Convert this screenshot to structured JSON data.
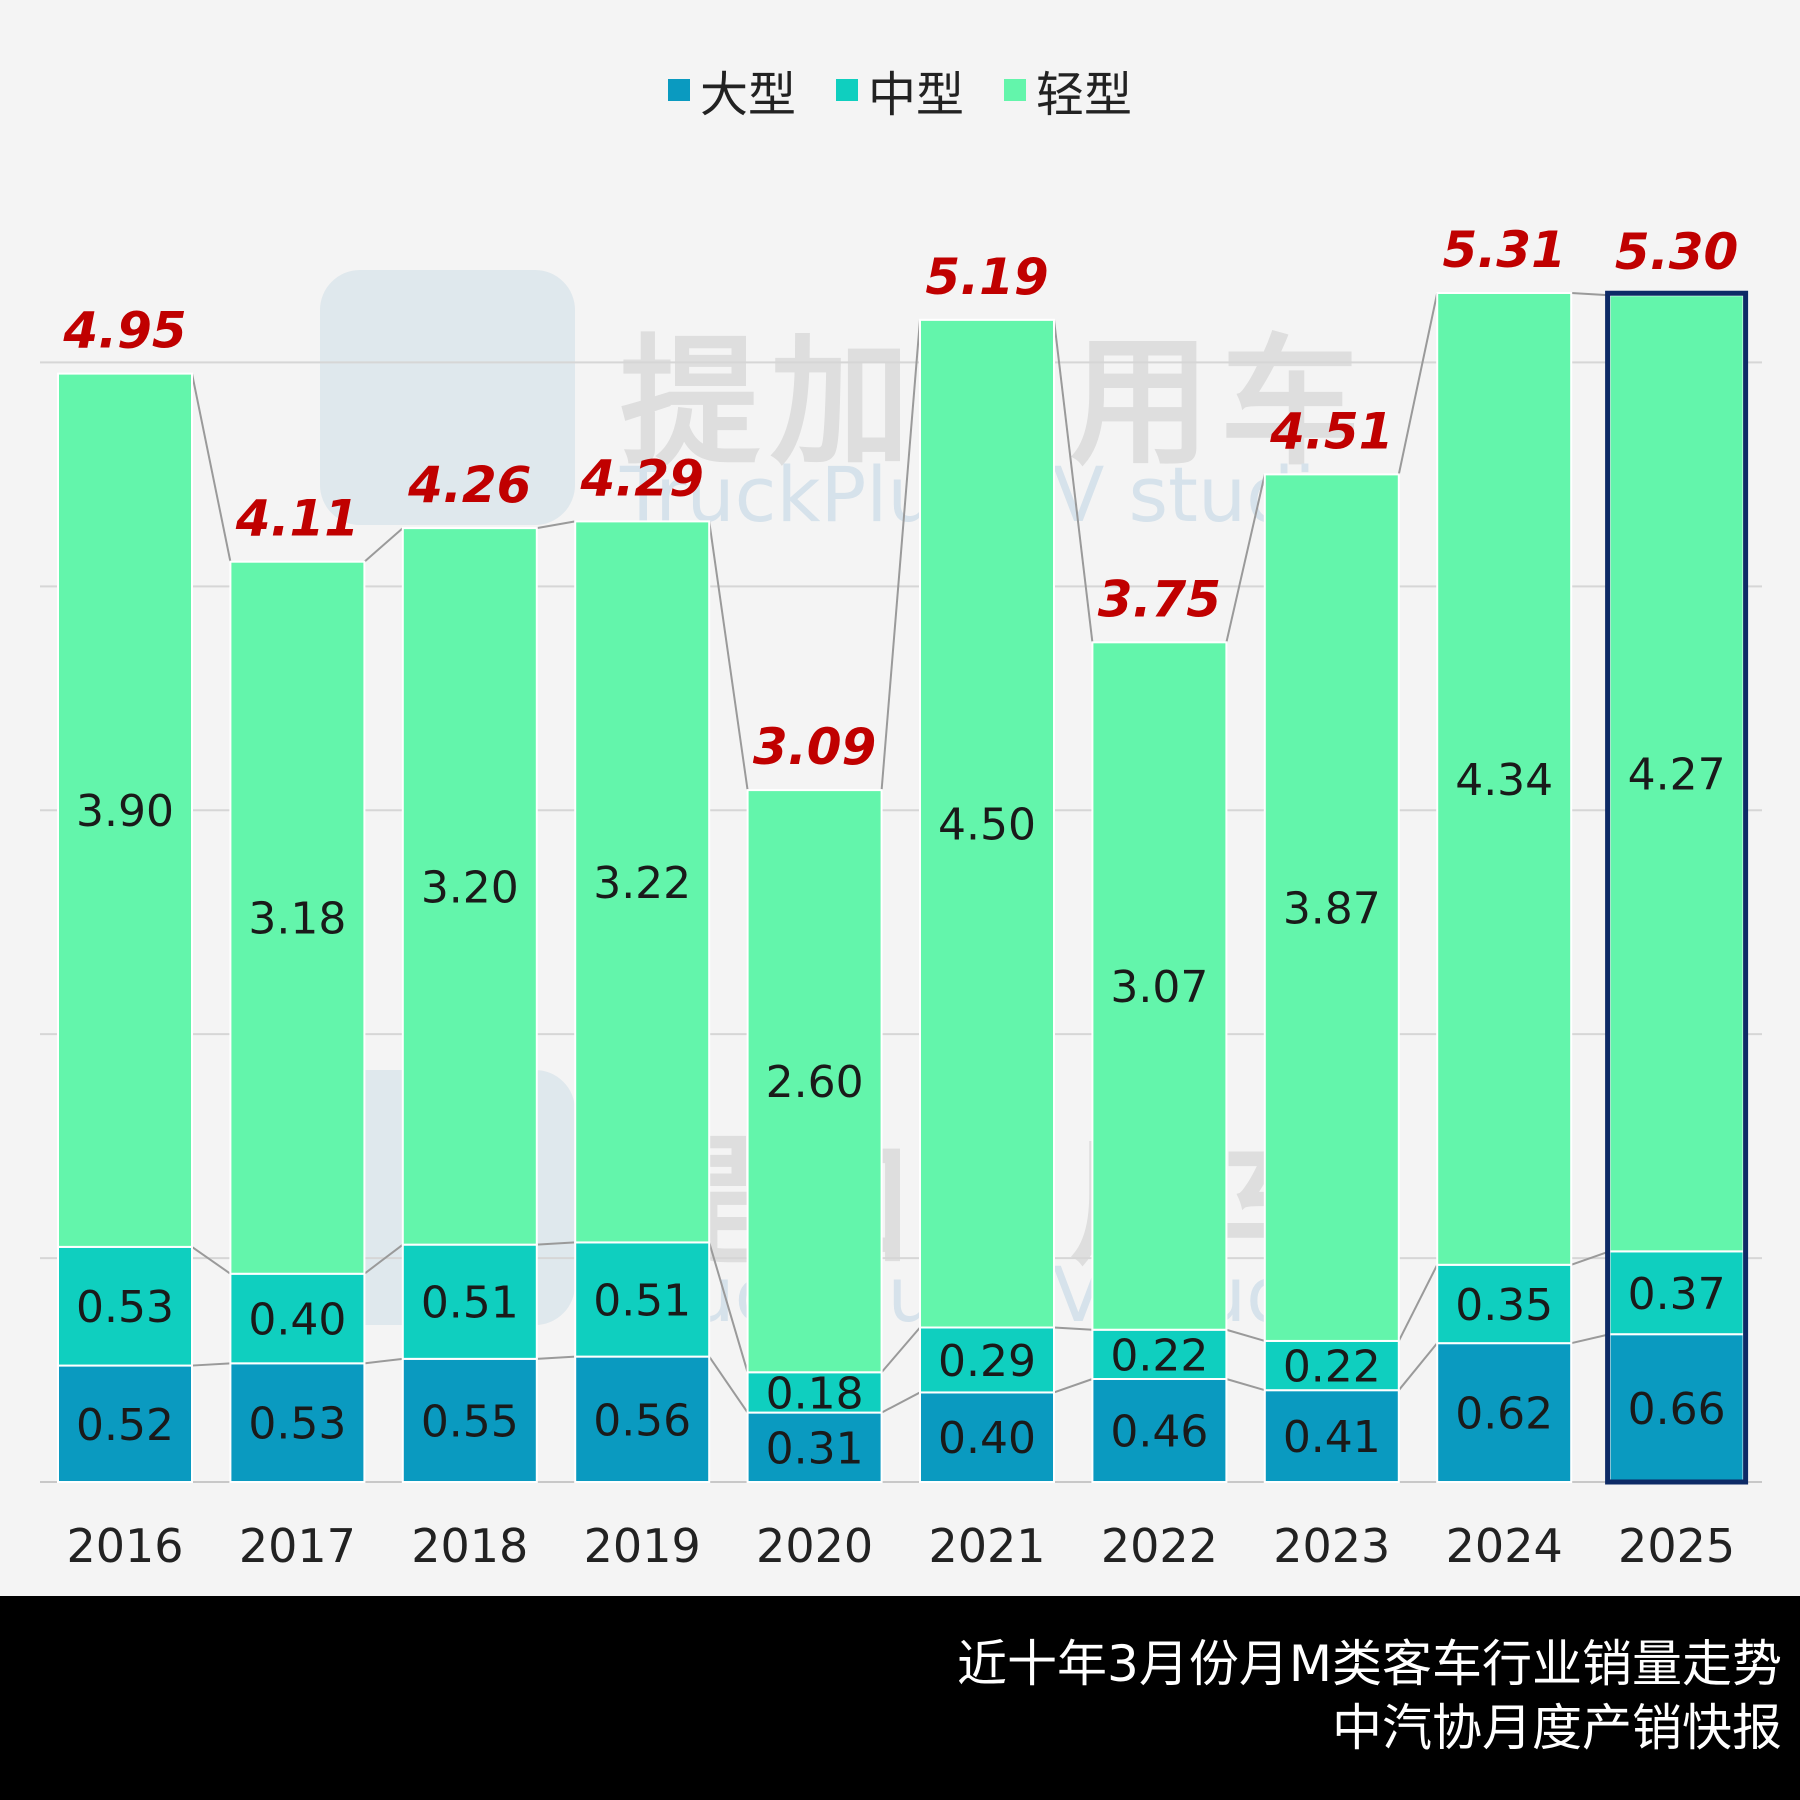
{
  "chart_data": {
    "type": "bar",
    "stacked": true,
    "categories": [
      "2016",
      "2017",
      "2018",
      "2019",
      "2020",
      "2021",
      "2022",
      "2023",
      "2024",
      "2025"
    ],
    "series": [
      {
        "name": "大型",
        "color": "#0a9ac0",
        "values": [
          0.52,
          0.53,
          0.55,
          0.56,
          0.31,
          0.4,
          0.46,
          0.41,
          0.62,
          0.66
        ]
      },
      {
        "name": "中型",
        "color": "#0fcfbf",
        "values": [
          0.53,
          0.4,
          0.51,
          0.51,
          0.18,
          0.29,
          0.22,
          0.22,
          0.35,
          0.37
        ]
      },
      {
        "name": "轻型",
        "color": "#63f5ab",
        "values": [
          3.9,
          3.18,
          3.2,
          3.22,
          2.6,
          4.5,
          3.07,
          3.87,
          4.34,
          4.27
        ]
      }
    ],
    "totals": [
      "4.95",
      "4.11",
      "4.26",
      "4.29",
      "3.09",
      "5.19",
      "3.75",
      "4.51",
      "5.31",
      "5.30"
    ],
    "total_label_color": "#c00000",
    "highlight_category": "2025",
    "highlight_color": "#0d2a66",
    "ylim": [
      0,
      5.31
    ],
    "grid": true,
    "legend_position": "top-center",
    "xlabel": "",
    "ylabel": ""
  },
  "watermark": {
    "cn": "提加商用车",
    "en": "TruckPlus CV studio"
  },
  "footer": {
    "line1": "近十年3月份月M类客车行业销量走势",
    "line2": "中汽协月度产销快报"
  }
}
